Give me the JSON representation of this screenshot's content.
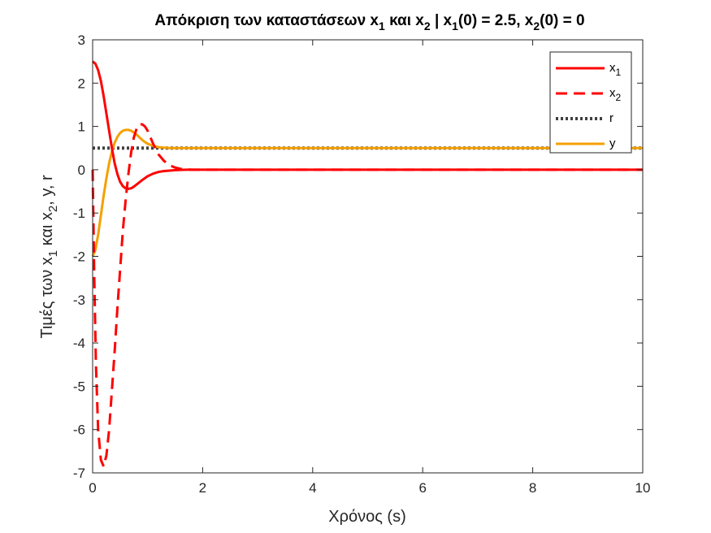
{
  "chart_data": {
    "type": "line",
    "title": {
      "main": "Απόκριση των καταστάσεων x",
      "sub1": "1",
      "mid1": " και x",
      "sub2": "2",
      "mid2": " | x",
      "sub3": "1",
      "mid3": "(0) = 2.5, x",
      "sub4": "2",
      "tail": "(0) = 0"
    },
    "xlabel": "Χρόνος (s)",
    "ylabel": {
      "part1": "Τιμές των x",
      "sub1": "1",
      "part2": " και x",
      "sub2": "2",
      "part3": ", y, r"
    },
    "xlim": [
      0,
      10
    ],
    "ylim": [
      -7,
      3
    ],
    "xticks": [
      0,
      2,
      4,
      6,
      8,
      10
    ],
    "yticks": [
      -7,
      -6,
      -5,
      -4,
      -3,
      -2,
      -1,
      0,
      1,
      2,
      3
    ],
    "grid": false,
    "legend_position": "top-right",
    "series": [
      {
        "name": "x",
        "name_sub": "1",
        "color": "#ff0000",
        "style": "solid",
        "x": [
          0,
          0.05,
          0.1,
          0.15,
          0.2,
          0.25,
          0.3,
          0.35,
          0.4,
          0.45,
          0.5,
          0.55,
          0.6,
          0.65,
          0.7,
          0.75,
          0.8,
          0.9,
          1.0,
          1.1,
          1.2,
          1.3,
          1.4,
          1.5,
          1.7,
          2.0,
          2.5,
          3,
          10
        ],
        "y": [
          2.5,
          2.45,
          2.3,
          2.05,
          1.7,
          1.3,
          0.9,
          0.5,
          0.15,
          -0.1,
          -0.28,
          -0.38,
          -0.43,
          -0.44,
          -0.43,
          -0.39,
          -0.34,
          -0.24,
          -0.15,
          -0.09,
          -0.05,
          -0.03,
          -0.02,
          -0.01,
          0,
          0,
          0,
          0,
          0
        ]
      },
      {
        "name": "x",
        "name_sub": "2",
        "color": "#ff0000",
        "style": "dashed",
        "x": [
          0,
          0.03,
          0.06,
          0.1,
          0.15,
          0.2,
          0.25,
          0.3,
          0.35,
          0.4,
          0.45,
          0.5,
          0.55,
          0.6,
          0.65,
          0.7,
          0.75,
          0.8,
          0.85,
          0.9,
          0.95,
          1.0,
          1.05,
          1.1,
          1.2,
          1.3,
          1.4,
          1.5,
          1.6,
          1.8,
          2.0,
          10
        ],
        "y": [
          0,
          -2.5,
          -4.5,
          -6.0,
          -6.7,
          -6.85,
          -6.6,
          -6.0,
          -5.1,
          -4.2,
          -3.2,
          -2.3,
          -1.4,
          -0.7,
          -0.1,
          0.4,
          0.75,
          0.95,
          1.05,
          1.05,
          1.0,
          0.9,
          0.75,
          0.6,
          0.35,
          0.2,
          0.1,
          0.05,
          0.02,
          0,
          0,
          0
        ]
      },
      {
        "name": "r",
        "color": "#404040",
        "style": "dotted",
        "x": [
          0,
          10
        ],
        "y": [
          0.5,
          0.5
        ]
      },
      {
        "name": "y",
        "color": "#f5a000",
        "style": "solid",
        "x": [
          0,
          0.05,
          0.1,
          0.15,
          0.2,
          0.25,
          0.3,
          0.35,
          0.4,
          0.45,
          0.5,
          0.55,
          0.6,
          0.65,
          0.7,
          0.75,
          0.8,
          0.85,
          0.9,
          0.95,
          1.0,
          1.1,
          1.2,
          1.3,
          1.4,
          1.6,
          2.0,
          10
        ],
        "y": [
          -2.0,
          -1.85,
          -1.5,
          -1.05,
          -0.6,
          -0.2,
          0.15,
          0.42,
          0.62,
          0.76,
          0.85,
          0.9,
          0.92,
          0.92,
          0.9,
          0.86,
          0.81,
          0.75,
          0.69,
          0.64,
          0.6,
          0.55,
          0.52,
          0.51,
          0.5,
          0.5,
          0.5,
          0.5
        ]
      }
    ]
  }
}
